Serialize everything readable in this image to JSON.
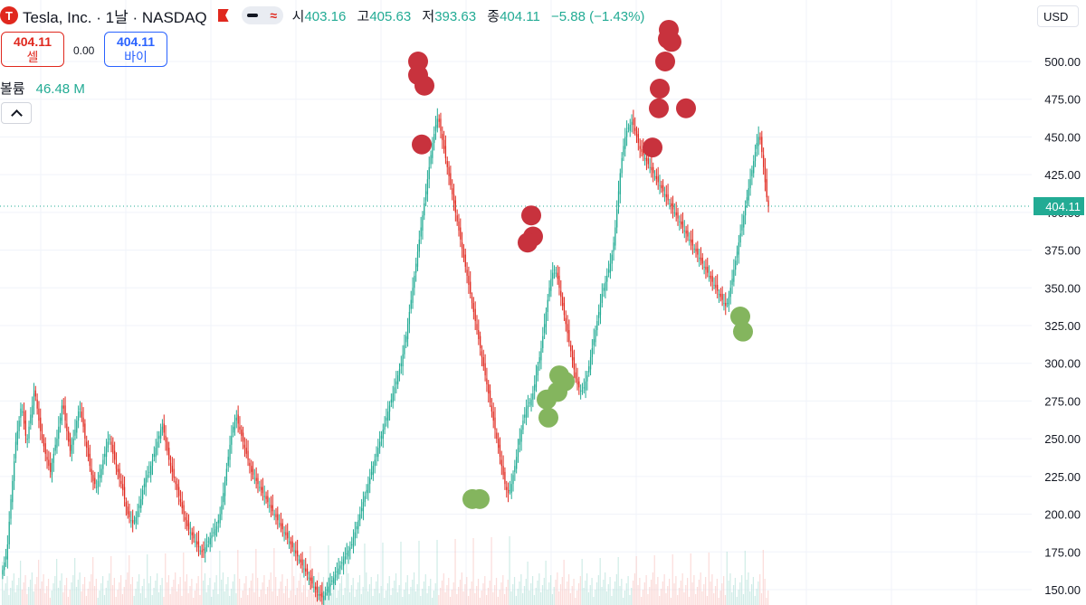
{
  "header": {
    "logo_glyph": "T",
    "title": "Tesla, Inc. · 1날 · NASDAQ",
    "mode_icon": "≈",
    "ohlc": [
      {
        "label": "시",
        "value": "403.16"
      },
      {
        "label": "고",
        "value": "405.63"
      },
      {
        "label": "저",
        "value": "393.63"
      },
      {
        "label": "종",
        "value": "404.11"
      }
    ],
    "change": "−5.88 (−1.43%)"
  },
  "trade": {
    "sell_price": "404.11",
    "sell_label": "셀",
    "spread": "0.00",
    "buy_price": "404.11",
    "buy_label": "바이"
  },
  "volume": {
    "label": "볼륨",
    "value": "46.48 M"
  },
  "currency": "USD",
  "colors": {
    "up": "#22ab94",
    "down": "#e0281e",
    "sell_marker": "#c8323d",
    "buy_marker": "#84b55e",
    "grid": "#f0f3fa",
    "last_price": "#22ab94"
  },
  "chart_data": {
    "type": "candlestick",
    "ylim": [
      145,
      520
    ],
    "yticks": [
      "500.00",
      "475.00",
      "450.00",
      "425.00",
      "400.00",
      "375.00",
      "350.00",
      "325.00",
      "300.00",
      "275.00",
      "250.00",
      "225.00",
      "200.00",
      "175.00",
      "150.00"
    ],
    "last_price": "404.11",
    "closes": [
      163,
      168,
      172,
      180,
      195,
      210,
      222,
      235,
      248,
      255,
      262,
      270,
      268,
      260,
      252,
      250,
      258,
      266,
      272,
      280,
      278,
      270,
      262,
      255,
      250,
      245,
      240,
      236,
      232,
      228,
      234,
      240,
      246,
      250,
      258,
      264,
      272,
      270,
      262,
      255,
      248,
      242,
      246,
      250,
      256,
      262,
      268,
      270,
      264,
      258,
      250,
      244,
      238,
      232,
      226,
      222,
      220,
      218,
      222,
      226,
      230,
      236,
      240,
      244,
      248,
      250,
      246,
      240,
      236,
      230,
      228,
      224,
      220,
      216,
      210,
      205,
      200,
      198,
      196,
      194,
      196,
      198,
      202,
      206,
      210,
      216,
      220,
      224,
      226,
      228,
      232,
      236,
      240,
      244,
      248,
      252,
      256,
      258,
      254,
      248,
      242,
      236,
      232,
      228,
      224,
      220,
      216,
      212,
      208,
      204,
      200,
      196,
      192,
      190,
      188,
      186,
      184,
      182,
      180,
      178,
      176,
      175,
      176,
      178,
      180,
      182,
      184,
      186,
      188,
      190,
      192,
      196,
      200,
      206,
      214,
      222,
      230,
      238,
      246,
      252,
      258,
      262,
      264,
      260,
      256,
      252,
      248,
      244,
      240,
      236,
      232,
      228,
      226,
      224,
      222,
      220,
      218,
      216,
      214,
      212,
      210,
      208,
      206,
      204,
      202,
      200,
      198,
      196,
      194,
      192,
      190,
      188,
      186,
      184,
      182,
      180,
      178,
      176,
      174,
      172,
      170,
      168,
      166,
      164,
      162,
      160,
      158,
      156,
      154,
      152,
      150,
      148,
      147,
      146,
      145,
      146,
      148,
      150,
      152,
      154,
      156,
      158,
      160,
      162,
      164,
      166,
      168,
      170,
      172,
      174,
      176,
      178,
      180,
      184,
      188,
      192,
      196,
      200,
      204,
      208,
      212,
      216,
      220,
      224,
      228,
      232,
      236,
      240,
      244,
      248,
      252,
      256,
      260,
      264,
      268,
      272,
      276,
      280,
      284,
      288,
      292,
      296,
      300,
      306,
      312,
      318,
      326,
      334,
      342,
      350,
      358,
      366,
      374,
      382,
      390,
      398,
      406,
      414,
      422,
      430,
      438,
      446,
      452,
      458,
      462,
      460,
      454,
      448,
      442,
      436,
      430,
      424,
      418,
      412,
      406,
      400,
      394,
      388,
      382,
      376,
      370,
      364,
      358,
      352,
      346,
      340,
      334,
      328,
      322,
      316,
      310,
      304,
      298,
      292,
      286,
      280,
      274,
      268,
      262,
      256,
      250,
      244,
      238,
      232,
      226,
      220,
      216,
      214,
      216,
      220,
      226,
      232,
      238,
      244,
      250,
      256,
      262,
      266,
      270,
      272,
      274,
      276,
      280,
      286,
      292,
      298,
      304,
      310,
      318,
      326,
      334,
      342,
      350,
      356,
      360,
      362,
      360,
      356,
      350,
      344,
      338,
      332,
      326,
      320,
      314,
      308,
      302,
      296,
      290,
      286,
      284,
      282,
      282,
      284,
      288,
      292,
      298,
      304,
      310,
      316,
      322,
      328,
      334,
      340,
      346,
      350,
      354,
      358,
      362,
      366,
      372,
      380,
      390,
      402,
      414,
      426,
      436,
      444,
      450,
      454,
      456,
      458,
      460,
      458,
      454,
      450,
      446,
      442,
      440,
      438,
      436,
      434,
      432,
      430,
      428,
      426,
      424,
      422,
      420,
      418,
      416,
      414,
      412,
      410,
      408,
      406,
      404,
      402,
      400,
      398,
      396,
      394,
      392,
      390,
      388,
      386,
      384,
      382,
      380,
      378,
      376,
      374,
      372,
      370,
      368,
      366,
      364,
      362,
      360,
      358,
      356,
      354,
      352,
      350,
      348,
      346,
      344,
      342,
      340,
      338,
      340,
      344,
      350,
      356,
      362,
      368,
      374,
      380,
      386,
      392,
      398,
      404,
      410,
      416,
      422,
      428,
      434,
      440,
      446,
      450,
      448,
      440,
      430,
      420,
      410,
      404
    ]
  },
  "markers": {
    "sell": [
      [
        462,
        500
      ],
      [
        462,
        491
      ],
      [
        469,
        484
      ],
      [
        466,
        445
      ],
      [
        587,
        398
      ],
      [
        589,
        384
      ],
      [
        583,
        380
      ],
      [
        739,
        521
      ],
      [
        742,
        513
      ],
      [
        738,
        515
      ],
      [
        735,
        500
      ],
      [
        729,
        482
      ],
      [
        728,
        469
      ],
      [
        758,
        469
      ],
      [
        721,
        443
      ]
    ],
    "buy": [
      [
        522,
        210
      ],
      [
        530,
        210
      ],
      [
        606,
        264
      ],
      [
        604,
        276
      ],
      [
        616,
        281
      ],
      [
        618,
        292
      ],
      [
        624,
        288
      ],
      [
        818,
        331
      ],
      [
        821,
        321
      ]
    ]
  }
}
